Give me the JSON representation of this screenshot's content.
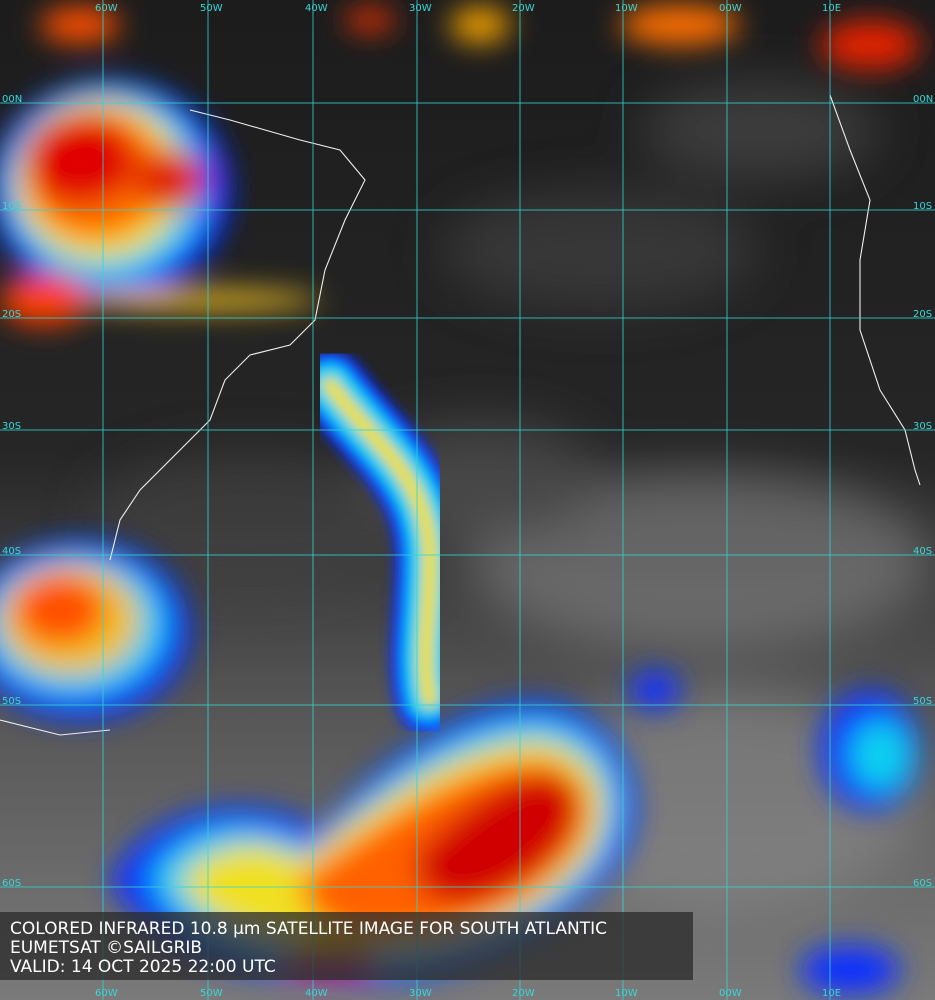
{
  "map": {
    "lon_labels": [
      "60W",
      "50W",
      "40W",
      "30W",
      "20W",
      "10W",
      "00W",
      "10E"
    ],
    "lat_labels": [
      "00N",
      "10S",
      "20S",
      "30S",
      "40S",
      "50S",
      "60S"
    ],
    "caption": [
      "COLORED INFRARED 10.8 µm SATELLITE IMAGE FOR SOUTH ATLANTIC",
      "EUMETSAT ©SAILGRIB",
      "VALID:  14 OCT 2025 22:00 UTC"
    ]
  }
}
